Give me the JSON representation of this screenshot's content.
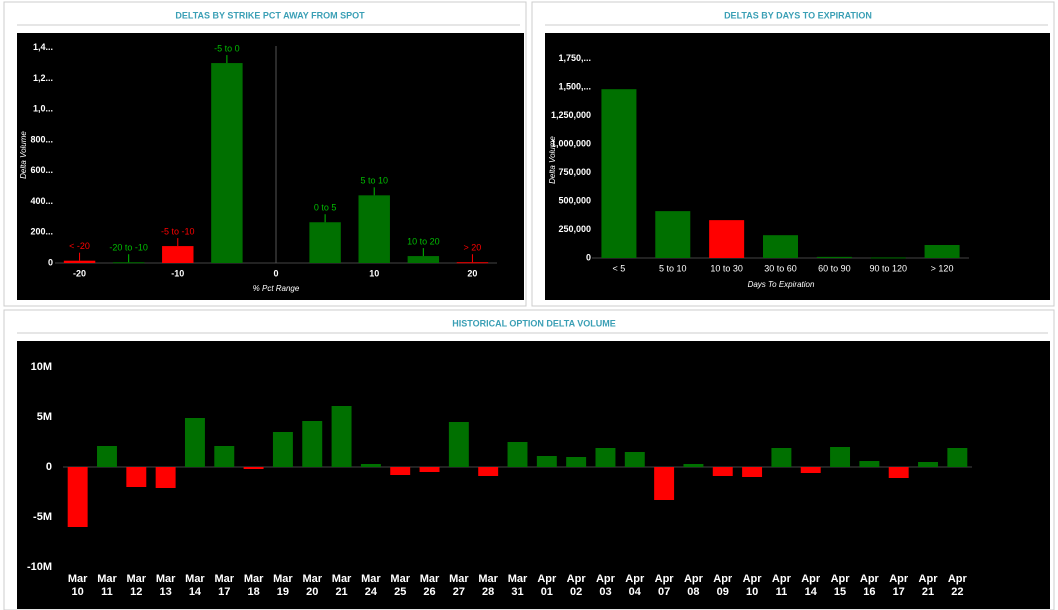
{
  "chart_data": [
    {
      "type": "bar",
      "title": "DELTAS BY STRIKE PCT AWAY FROM SPOT",
      "x_label": "% Pct Range",
      "y_label": "Delta Volume",
      "categories": [
        "< -20",
        "-20 to -10",
        "-5 to -10",
        "-5 to 0",
        "0 to 5",
        "5 to 10",
        "10 to 20",
        "> 20"
      ],
      "x": [
        -20,
        -15,
        -10,
        -5,
        5,
        10,
        15,
        20
      ],
      "values": [
        15,
        5,
        110,
        1300,
        265,
        440,
        45,
        5
      ],
      "colors": [
        "#ff0000",
        "#007000",
        "#ff0000",
        "#007000",
        "#007000",
        "#007000",
        "#007000",
        "#ff0000"
      ],
      "xlim": [
        -22.5,
        22.5
      ],
      "xticks": [
        -20,
        -10,
        0,
        10,
        20
      ],
      "ylim": [
        0,
        1450
      ],
      "yticks": [
        0,
        {
          "value": 200,
          "label": "200..."
        },
        {
          "value": 400,
          "label": "400..."
        },
        {
          "value": 600,
          "label": "600..."
        },
        {
          "value": 800,
          "label": "800..."
        },
        {
          "value": 1000,
          "label": "1,0..."
        },
        {
          "value": 1200,
          "label": "1,2..."
        },
        {
          "value": 1400,
          "label": "1,4..."
        }
      ]
    },
    {
      "type": "bar",
      "title": "DELTAS BY DAYS TO EXPIRATION",
      "x_label": "Days To Expiration",
      "y_label": "Delta Volume",
      "categories": [
        "< 5",
        "5 to 10",
        "10 to 30",
        "30 to 60",
        "60 to 90",
        "90 to 120",
        "> 120"
      ],
      "values": [
        1480000,
        411000,
        332000,
        200000,
        10000,
        5000,
        114000
      ],
      "colors": [
        "#007000",
        "#007000",
        "#ff0000",
        "#007000",
        "#007000",
        "#007000",
        "#007000"
      ],
      "ylim": [
        0,
        1850000
      ],
      "yticks": [
        0,
        {
          "value": 250000,
          "label": "250,000"
        },
        {
          "value": 500000,
          "label": "500,000"
        },
        {
          "value": 750000,
          "label": "750,000"
        },
        {
          "value": 1000000,
          "label": "1,000,000"
        },
        {
          "value": 1250000,
          "label": "1,250,000"
        },
        {
          "value": 1500000,
          "label": "1,500,..."
        },
        {
          "value": 1750000,
          "label": "1,750,..."
        }
      ]
    },
    {
      "type": "bar",
      "title": "HISTORICAL OPTION DELTA VOLUME",
      "categories": [
        "Mar 10",
        "Mar 11",
        "Mar 12",
        "Mar 13",
        "Mar 14",
        "Mar 17",
        "Mar 18",
        "Mar 19",
        "Mar 20",
        "Mar 21",
        "Mar 24",
        "Mar 25",
        "Mar 26",
        "Mar 27",
        "Mar 28",
        "Mar 31",
        "Apr 01",
        "Apr 02",
        "Apr 03",
        "Apr 04",
        "Apr 07",
        "Apr 08",
        "Apr 09",
        "Apr 10",
        "Apr 11",
        "Apr 14",
        "Apr 15",
        "Apr 16",
        "Apr 17",
        "Apr 21",
        "Apr 22"
      ],
      "values": [
        -6000000,
        2100000,
        -2000000,
        -2100000,
        4900000,
        2100000,
        -200000,
        3500000,
        4600000,
        6100000,
        300000,
        -800000,
        -500000,
        4500000,
        -900000,
        2500000,
        1100000,
        1000000,
        1900000,
        1500000,
        -3300000,
        300000,
        -900000,
        -1000000,
        1900000,
        -600000,
        2000000,
        600000,
        -1100000,
        500000,
        1900000
      ],
      "positive_color": "#007000",
      "negative_color": "#ff0000",
      "ylim": [
        -10500000,
        11000000
      ],
      "yticks": [
        {
          "value": -10000000,
          "label": "-10M"
        },
        {
          "value": -5000000,
          "label": "-5M"
        },
        0,
        {
          "value": 5000000,
          "label": "5M"
        },
        {
          "value": 10000000,
          "label": "10M"
        }
      ]
    }
  ]
}
